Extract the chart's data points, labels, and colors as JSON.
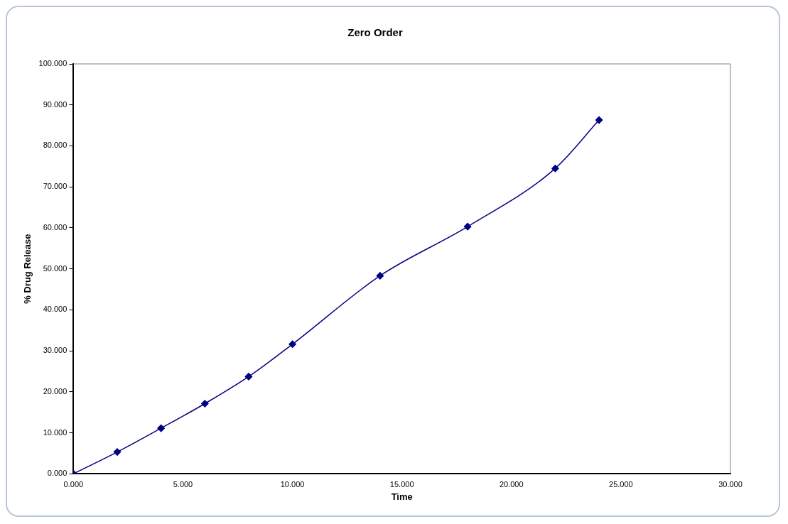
{
  "chart_data": {
    "type": "line",
    "title": "Zero Order",
    "xlabel": "Time",
    "ylabel": "% Drug Release",
    "x": [
      0,
      2,
      4,
      6,
      8,
      10,
      14,
      18,
      22,
      24
    ],
    "series": [
      {
        "color": "#000080",
        "values": [
          0,
          5.3,
          11.1,
          17.1,
          23.7,
          31.6,
          48.3,
          60.3,
          74.5,
          86.3
        ]
      }
    ],
    "xlim": [
      0,
      30
    ],
    "xticks": [
      {
        "value": 0,
        "label": "0.000"
      },
      {
        "value": 5,
        "label": "5.000"
      },
      {
        "value": 10,
        "label": "10.000"
      },
      {
        "value": 15,
        "label": "15.000"
      },
      {
        "value": 20,
        "label": "20.000"
      },
      {
        "value": 25,
        "label": "25.000"
      },
      {
        "value": 30,
        "label": "30.000"
      }
    ],
    "ylim": [
      0,
      100
    ],
    "yticks": [
      {
        "value": 0,
        "label": "0.000"
      },
      {
        "value": 10,
        "label": "10.000"
      },
      {
        "value": 20,
        "label": "20.000"
      },
      {
        "value": 30,
        "label": "30.000"
      },
      {
        "value": 40,
        "label": "40.000"
      },
      {
        "value": 50,
        "label": "50.000"
      },
      {
        "value": 60,
        "label": "60.000"
      },
      {
        "value": 70,
        "label": "70.000"
      },
      {
        "value": 80,
        "label": "80.000"
      },
      {
        "value": 90,
        "label": "90.000"
      },
      {
        "value": 100,
        "label": "100.000"
      }
    ],
    "grid": false,
    "legend": false,
    "marker": "diamond",
    "line_style": "solid"
  }
}
